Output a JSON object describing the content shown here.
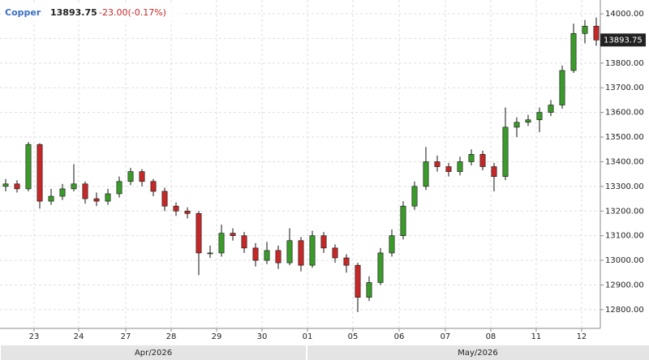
{
  "chart_data": {
    "type": "candlestick",
    "title": "Copper",
    "change": "-23.00(-0.17%)",
    "x": [
      0.5,
      1.5,
      2.5,
      3.5,
      4.5,
      5.5,
      6.5,
      7.5,
      8.5,
      9.5,
      10.5,
      11.5,
      12.5,
      13.5,
      14.5,
      15.5,
      16.5,
      17.5,
      18.5,
      19.5,
      20.5,
      21.5,
      22.5,
      23.5,
      24.5,
      25.5,
      26.5,
      27.5,
      28.5,
      29.5,
      30.5,
      31.5,
      32.5,
      33.5,
      34.5,
      35.5,
      36.5,
      37.5,
      38.5,
      39.5,
      40.5,
      41.5,
      42.5,
      43.5,
      44.5,
      45.5,
      46.5,
      47.5,
      48.5,
      49.5,
      50.5,
      51.5,
      52.5
    ],
    "open": [
      13300,
      13310,
      13290,
      13470,
      13240,
      13260,
      13290,
      13310,
      13250,
      13240,
      13270,
      13320,
      13360,
      13320,
      13280,
      13220,
      13200,
      13190,
      13030,
      13030,
      13110,
      13100,
      13050,
      13000,
      13040,
      12990,
      13080,
      12980,
      13100,
      13050,
      13010,
      12980,
      12850,
      12910,
      13030,
      13100,
      13220,
      13300,
      13400,
      13380,
      13360,
      13400,
      13430,
      13380,
      13340,
      13540,
      13560,
      13570,
      13600,
      13630,
      13770,
      13920,
      13950
    ],
    "high": [
      13330,
      13325,
      13480,
      13475,
      13290,
      13310,
      13390,
      13320,
      13275,
      13290,
      13340,
      13375,
      13370,
      13330,
      13295,
      13235,
      13215,
      13200,
      13060,
      13145,
      13130,
      13115,
      13070,
      13075,
      13060,
      13130,
      13095,
      13120,
      13115,
      13065,
      13025,
      12990,
      12935,
      13050,
      13125,
      13240,
      13320,
      13460,
      13425,
      13395,
      13420,
      13450,
      13445,
      13395,
      13620,
      13580,
      13590,
      13620,
      13650,
      13790,
      13960,
      13975,
      13985
    ],
    "low": [
      13280,
      13275,
      13280,
      13210,
      13225,
      13245,
      13280,
      13230,
      13220,
      13225,
      13255,
      13305,
      13300,
      13260,
      13200,
      13180,
      13170,
      12940,
      13010,
      13015,
      13080,
      13030,
      12975,
      12985,
      12965,
      12980,
      12955,
      12970,
      13030,
      12990,
      12950,
      12790,
      12835,
      12900,
      13015,
      13085,
      13205,
      13285,
      13360,
      13340,
      13345,
      13385,
      13365,
      13280,
      13325,
      13500,
      13545,
      13520,
      13585,
      13615,
      13760,
      13880,
      13870
    ],
    "close": [
      13310,
      13290,
      13470,
      13240,
      13260,
      13290,
      13310,
      13250,
      13240,
      13270,
      13320,
      13360,
      13320,
      13280,
      13220,
      13200,
      13190,
      13030,
      13030,
      13110,
      13100,
      13050,
      13000,
      13040,
      12990,
      13080,
      12980,
      13100,
      13050,
      13010,
      12980,
      12850,
      12910,
      13030,
      13100,
      13220,
      13300,
      13400,
      13380,
      13360,
      13400,
      13430,
      13380,
      13340,
      13540,
      13560,
      13570,
      13600,
      13630,
      13770,
      13920,
      13950,
      13893.75
    ],
    "up_color": "#3a9a2a",
    "down_color": "#c62828",
    "xlim": [
      0,
      52.857
    ],
    "xticks": [
      {
        "value": 3,
        "label": "23"
      },
      {
        "value": 6.93,
        "label": "24"
      },
      {
        "value": 11.07,
        "label": "27"
      },
      {
        "value": 15.07,
        "label": "28"
      },
      {
        "value": 19.07,
        "label": "29"
      },
      {
        "value": 23.07,
        "label": "30"
      },
      {
        "value": 27.07,
        "label": "01"
      },
      {
        "value": 31.07,
        "label": "05"
      },
      {
        "value": 35.14,
        "label": "06"
      },
      {
        "value": 39.21,
        "label": "07"
      },
      {
        "value": 43.21,
        "label": "08"
      },
      {
        "value": 47.21,
        "label": "11"
      },
      {
        "value": 51.21,
        "label": "12"
      }
    ],
    "months": [
      {
        "value": 0,
        "label": "Apr/2026"
      },
      {
        "value": 27,
        "label": "May/2026"
      }
    ],
    "ylim": [
      12724,
      14056
    ],
    "yticks": [
      {
        "value": 12800,
        "label": "12800.00"
      },
      {
        "value": 12900,
        "label": "12900.00"
      },
      {
        "value": 13000,
        "label": "13000.00"
      },
      {
        "value": 13100,
        "label": "13100.00"
      },
      {
        "value": 13200,
        "label": "13200.00"
      },
      {
        "value": 13300,
        "label": "13300.00"
      },
      {
        "value": 13400,
        "label": "13400.00"
      },
      {
        "value": 13500,
        "label": "13500.00"
      },
      {
        "value": 13600,
        "label": "13600.00"
      },
      {
        "value": 13700,
        "label": "13700.00"
      },
      {
        "value": 13800,
        "label": "13800.00"
      },
      {
        "value": 13900,
        "label": "13900.00"
      },
      {
        "value": 14000,
        "label": "14000.00"
      }
    ],
    "grid": true
  }
}
